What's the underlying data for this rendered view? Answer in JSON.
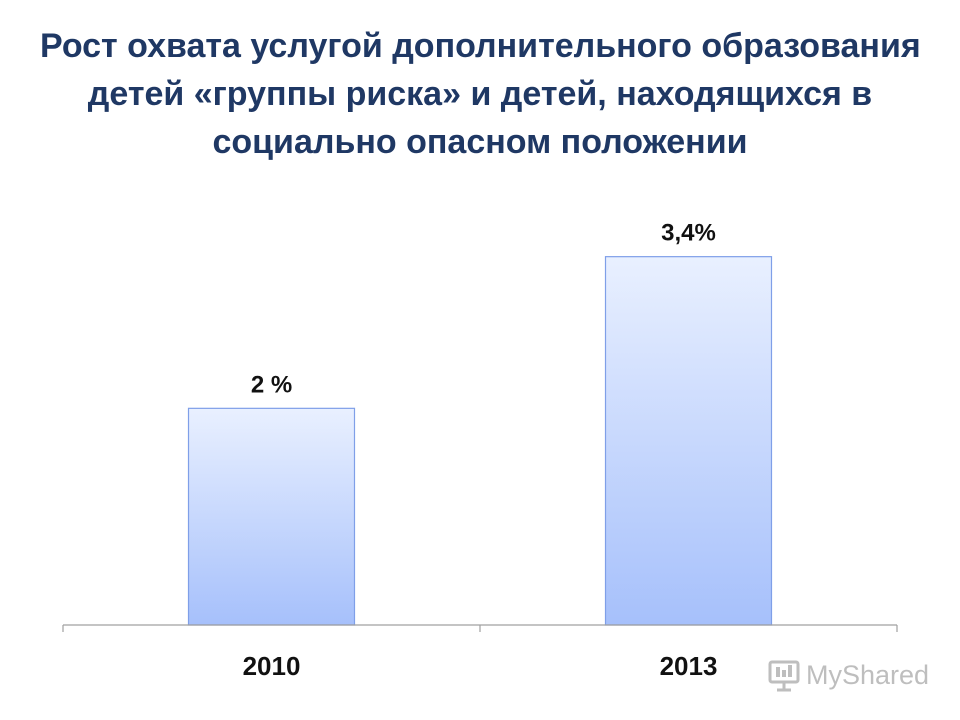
{
  "chart_data": {
    "type": "bar",
    "title_lines": [
      "Рост охвата услугой дополнительного образования",
      "детей «группы риска» и детей, находящихся в",
      "социально опасном положении"
    ],
    "categories": [
      "2010",
      "2013"
    ],
    "values": [
      2,
      3.4
    ],
    "data_labels": [
      "2 %",
      "3,4%"
    ],
    "xlabel": "",
    "ylabel": "",
    "ylim": [
      0,
      4.2
    ],
    "grid": false,
    "legend": "none"
  },
  "colors": {
    "title": "#1f3864",
    "bar_top": "#e9f0ff",
    "bar_bottom": "#a6c0fb",
    "bar_stroke": "#7f9fe8",
    "axis": "#a0a0a0",
    "label": "#111111"
  },
  "watermark": {
    "icon": "presentation-screen-icon",
    "text": "MyShared"
  }
}
